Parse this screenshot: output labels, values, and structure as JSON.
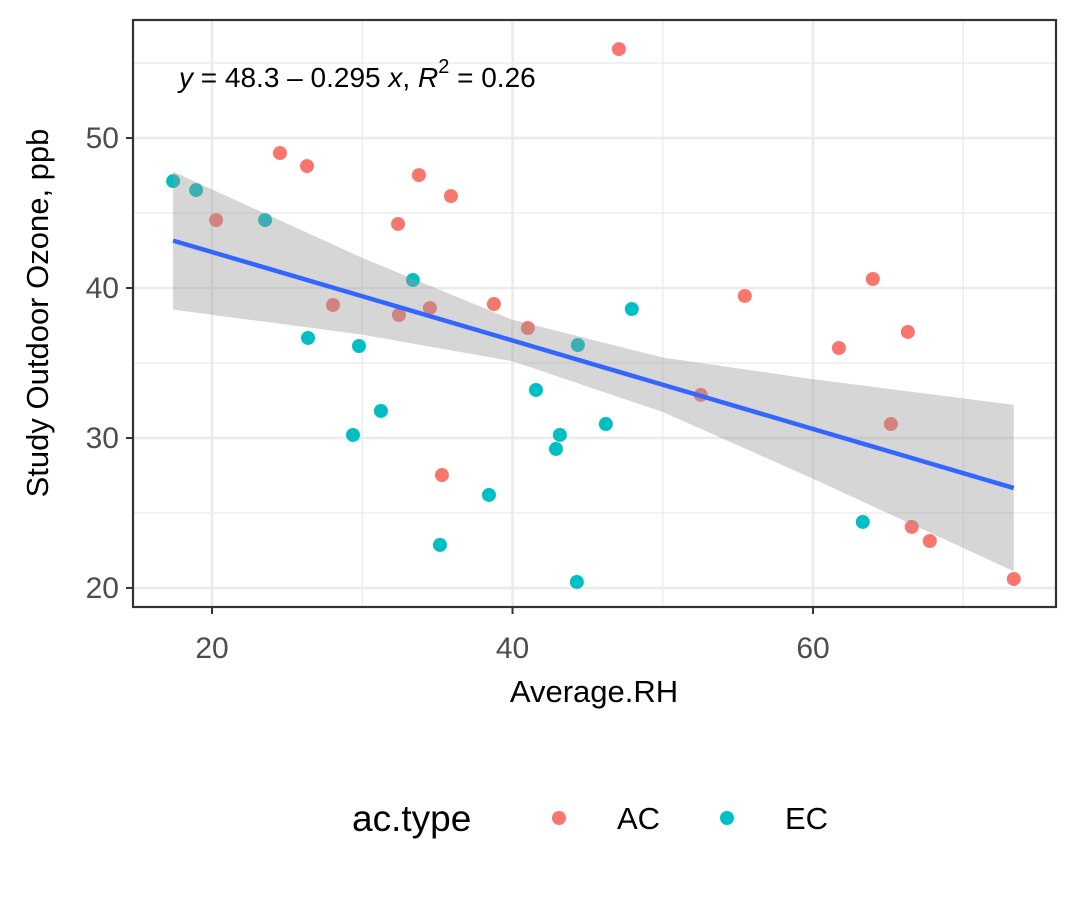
{
  "chart_data": {
    "type": "scatter",
    "x_label": "Average.RH",
    "y_label": "Study Outdoor Ozone, ppb",
    "annotation": [
      "y",
      " = 48.3 – 0.295 ",
      "x",
      ", ",
      "R",
      "2",
      " = 0.26"
    ],
    "xlim": [
      14.74,
      76.17
    ],
    "ylim": [
      18.73,
      57.87
    ],
    "xticks": [
      20,
      40,
      60
    ],
    "yticks": [
      20,
      30,
      40,
      50
    ],
    "xminor": [
      30,
      50,
      70
    ],
    "yminor": [
      25,
      35,
      45,
      55
    ],
    "grid": true,
    "legend_title": "ac.type",
    "legend_position": "bottom",
    "series": [
      {
        "name": "AC",
        "color": "#F8766D",
        "x": [
          47.08,
          24.52,
          26.32,
          20.27,
          33.77,
          35.9,
          32.38,
          28.05,
          32.44,
          34.5,
          38.76,
          41.02,
          35.3,
          52.53,
          55.46,
          61.72,
          63.98,
          66.31,
          65.18,
          66.57,
          67.77,
          73.36
        ],
        "values": [
          55.93,
          49.0,
          48.13,
          44.53,
          47.53,
          46.13,
          44.27,
          38.87,
          38.2,
          38.67,
          38.93,
          37.33,
          27.53,
          32.87,
          39.47,
          36.0,
          40.6,
          37.07,
          30.93,
          24.07,
          23.13,
          20.6
        ]
      },
      {
        "name": "EC",
        "color": "#00BFC4",
        "x": [
          17.41,
          18.94,
          23.53,
          33.37,
          26.39,
          29.78,
          31.24,
          29.38,
          35.17,
          38.43,
          41.56,
          44.35,
          47.94,
          43.15,
          42.89,
          46.21,
          44.28,
          63.31
        ],
        "values": [
          47.13,
          46.53,
          44.53,
          40.53,
          36.67,
          36.13,
          31.8,
          30.2,
          22.87,
          26.2,
          33.2,
          36.2,
          38.6,
          30.2,
          29.27,
          30.93,
          20.4,
          24.4
        ]
      }
    ],
    "smooth": {
      "color": "#3366FF",
      "band_color": "#999999",
      "x": [
        17.41,
        30,
        40,
        50,
        60,
        73.36
      ],
      "fit": [
        43.16,
        39.45,
        36.5,
        33.55,
        30.6,
        26.66
      ],
      "lower": [
        38.56,
        36.89,
        35.12,
        31.73,
        27.28,
        21.11
      ],
      "upper": [
        47.76,
        42.01,
        37.88,
        35.37,
        33.92,
        32.21
      ]
    }
  }
}
